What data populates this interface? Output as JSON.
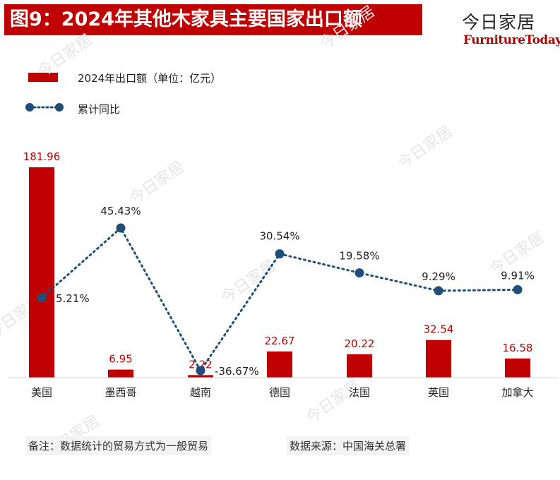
{
  "header": {
    "title": "图9：2024年其他木家具主要国家出口额",
    "brand_cn": "今日家居",
    "brand_en": "FurnitureToday"
  },
  "legend": {
    "bar_label": "2024年出口额（单位：亿元）",
    "line_label": "累计同比"
  },
  "colors": {
    "bar": "#c00000",
    "line": "#1f4e79",
    "title_bg": "#c00000"
  },
  "chart_data": {
    "type": "bar",
    "title": "2024年其他木家具主要国家出口额",
    "categories": [
      "美国",
      "墨西哥",
      "越南",
      "德国",
      "法国",
      "英国",
      "加拿大"
    ],
    "series": [
      {
        "name": "2024年出口额（单位：亿元）",
        "type": "bar",
        "values": [
          181.96,
          6.95,
          2.22,
          22.67,
          20.22,
          32.54,
          16.58
        ],
        "labels": [
          "181.96",
          "6.95",
          "2.22",
          "22.67",
          "20.22",
          "32.54",
          "16.58"
        ]
      },
      {
        "name": "累计同比",
        "type": "line",
        "unit": "%",
        "values": [
          5.21,
          45.43,
          -36.67,
          30.54,
          19.58,
          9.29,
          9.91
        ],
        "labels": [
          "5.21%",
          "45.43%",
          "-36.67%",
          "30.54%",
          "19.58%",
          "9.29%",
          "9.91%"
        ]
      }
    ],
    "bar_ylim": [
      0,
      185
    ],
    "line_ylim": [
      -38,
      75
    ]
  },
  "footer": {
    "note": "备注：数据统计的贸易方式为一般贸易",
    "source": "数据来源：中国海关总署"
  }
}
